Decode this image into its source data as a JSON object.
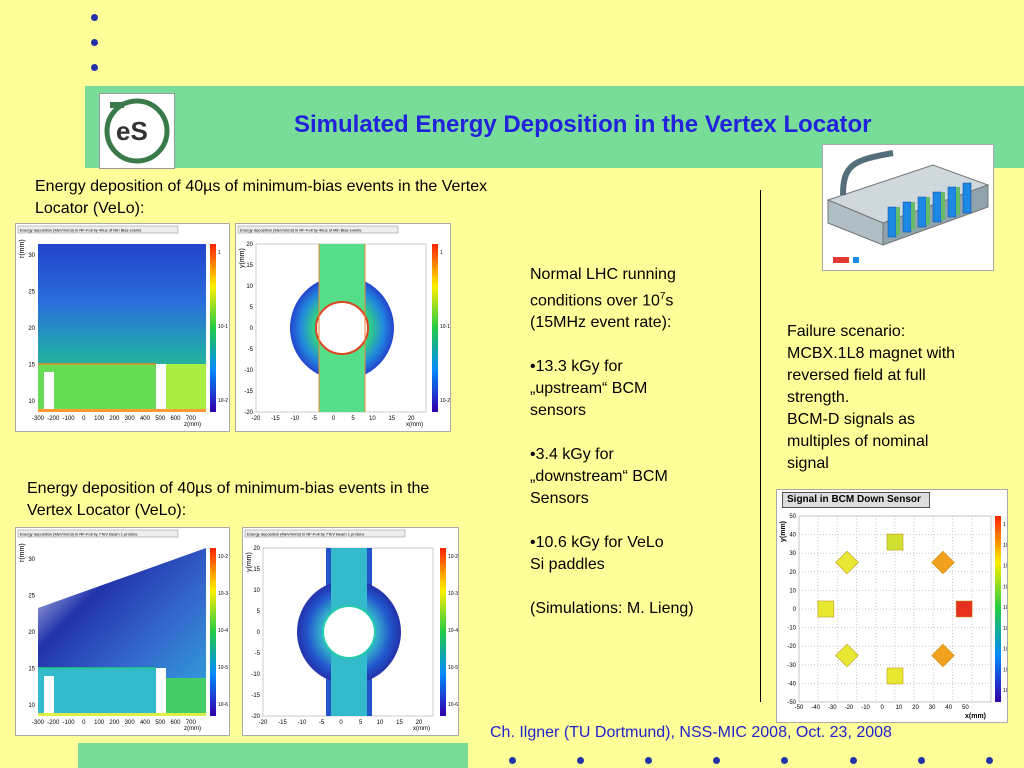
{
  "title": "Simulated Energy Deposition in the Vertex Locator",
  "left_top_caption": "Energy deposition of 40µs of minimum-bias events in the Vertex Locator (VeLo):",
  "left_bottom_caption": "Energy deposition of 40µs of minimum-bias events in the Vertex Locator (VeLo):",
  "middle_text": {
    "line1": "Normal LHC running",
    "line2a": "conditions over 10",
    "line2sup": "7",
    "line2b": "s",
    "line3": "(15MHz event rate):",
    "b1a": "•13.3 kGy for",
    "b1b": "„upstream“ BCM",
    "b1c": "sensors",
    "b2a": "•3.4 kGy for",
    "b2b": "„downstream“ BCM",
    "b2c": "Sensors",
    "b3a": "•10.6 kGy for VeLo",
    "b3b": "Si paddles",
    "credit": "(Simulations: M. Lieng)"
  },
  "right_text": {
    "l1": "Failure scenario:",
    "l2": "MCBX.1L8 magnet with",
    "l3": "reversed field at full",
    "l4": "strength.",
    "l5": "BCM-D signals as",
    "l6": "multiples of nominal",
    "l7": "signal"
  },
  "footer": "Ch. Ilgner (TU Dortmund), NSS-MIC 2008, Oct. 23, 2008",
  "bcm_plot_title": "Signal in BCM Down Sensor",
  "plot_labels": {
    "rz_ylabel": "r(mm)",
    "rz_xlabel": "z(mm)",
    "xy_ylabel": "y(mm)",
    "xy_xlabel": "x(mm)",
    "rz_header_top": "Energy deposition (MeV/mm3) in RF-Foil by 40us of Min Bias events",
    "xy_header_top": "Energy deposition (MeV/mm3) in RF-Foil by 40us of Min Bias events",
    "rz_header_bottom": "Energy deposition (MeV/mm3) in RF-Foil by 7TeV Beam 1 protons",
    "xy_header_bottom": "Energy deposition (MeV/mm3) in RF-Foil by 7TeV Beam 1 protons"
  },
  "chart_data": [
    {
      "type": "heatmap",
      "xlabel": "z(mm)",
      "ylabel": "r(mm)",
      "x_ticks": [
        "-300",
        "-200",
        "-100",
        "0",
        "100",
        "200",
        "300",
        "400",
        "500",
        "600",
        "700"
      ],
      "y_ticks": [
        "10",
        "15",
        "20",
        "25",
        "30"
      ],
      "colorbar_ticks": [
        "1",
        "10-1",
        "10-2"
      ]
    },
    {
      "type": "heatmap",
      "xlabel": "x(mm)",
      "ylabel": "y(mm)",
      "x_ticks": [
        "-20",
        "-15",
        "-10",
        "-5",
        "0",
        "5",
        "10",
        "15",
        "20"
      ],
      "y_ticks": [
        "-20",
        "-15",
        "-10",
        "-5",
        "0",
        "5",
        "10",
        "15",
        "20"
      ],
      "colorbar_ticks": [
        "1",
        "10-1",
        "10-2"
      ]
    },
    {
      "type": "heatmap",
      "xlabel": "z(mm)",
      "ylabel": "r(mm)",
      "x_ticks": [
        "-300",
        "-200",
        "-100",
        "0",
        "100",
        "200",
        "300",
        "400",
        "500",
        "600",
        "700"
      ],
      "y_ticks": [
        "10",
        "15",
        "20",
        "25",
        "30"
      ],
      "colorbar_ticks": [
        "10-2",
        "10-3",
        "10-4",
        "10-5",
        "10-6"
      ]
    },
    {
      "type": "heatmap",
      "xlabel": "x(mm)",
      "ylabel": "y(mm)",
      "x_ticks": [
        "-20",
        "-15",
        "-10",
        "-5",
        "0",
        "5",
        "10",
        "15",
        "20"
      ],
      "y_ticks": [
        "-20",
        "-15",
        "-10",
        "-5",
        "0",
        "5",
        "10",
        "15",
        "20"
      ],
      "colorbar_ticks": [
        "10-2",
        "10-3",
        "10-4",
        "10-5",
        "10-6"
      ]
    },
    {
      "type": "heatmap",
      "title": "Signal in BCM Down Sensor",
      "xlabel": "x(mm)",
      "ylabel": "y(mm)",
      "x_ticks": [
        "-50",
        "-40",
        "-30",
        "-20",
        "-10",
        "0",
        "10",
        "20",
        "30",
        "40",
        "50"
      ],
      "y_ticks": [
        "-50",
        "-40",
        "-30",
        "-20",
        "-10",
        "0",
        "10",
        "20",
        "30",
        "40",
        "50"
      ],
      "colorbar_ticks": [
        "1",
        "10",
        "10²",
        "10³",
        "10⁴",
        "10⁵",
        "10⁶",
        "10⁷",
        "10⁸"
      ],
      "sensors": [
        {
          "x": 0,
          "y": 36,
          "level": "green-yellow"
        },
        {
          "x": -25,
          "y": 25,
          "level": "yellow"
        },
        {
          "x": 25,
          "y": 25,
          "level": "orange"
        },
        {
          "x": -36,
          "y": 0,
          "level": "yellow"
        },
        {
          "x": 36,
          "y": 0,
          "level": "red"
        },
        {
          "x": -25,
          "y": -25,
          "level": "yellow"
        },
        {
          "x": 25,
          "y": -25,
          "level": "orange"
        },
        {
          "x": 0,
          "y": -36,
          "level": "yellow"
        }
      ]
    }
  ]
}
